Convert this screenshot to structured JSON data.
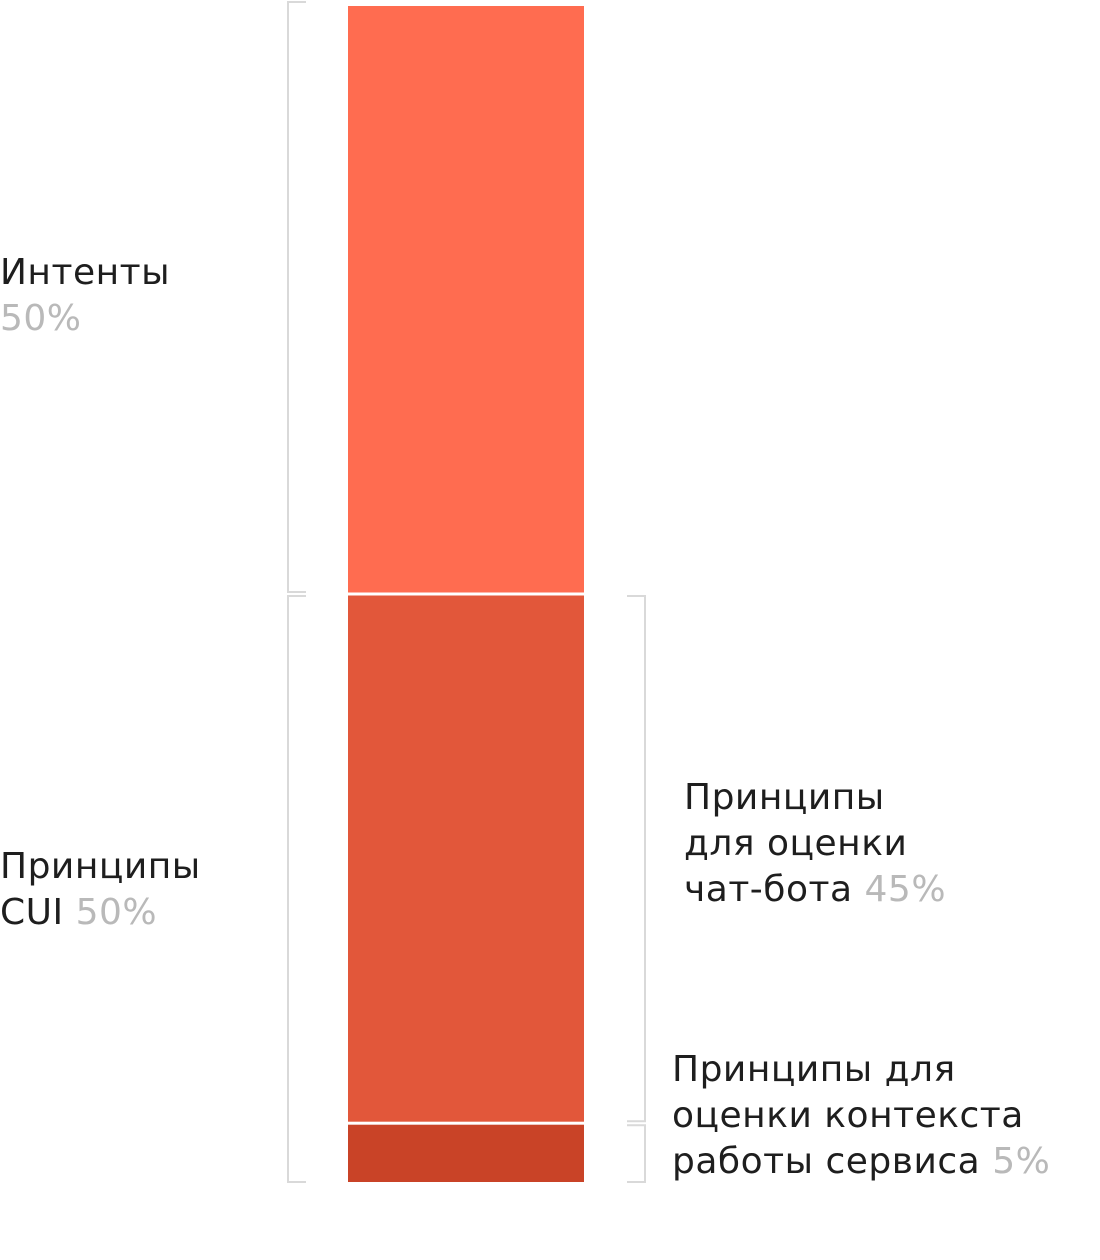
{
  "chart_data": {
    "type": "stacked-bar",
    "total": 100,
    "unit": "%",
    "segments": [
      {
        "name": "Интенты",
        "value": 50,
        "color": "#ff6c50"
      },
      {
        "name": "Принципы для оценки чат-бота",
        "value": 45,
        "color": "#e2573a"
      },
      {
        "name": "Принципы для оценки контекста работы сервиса",
        "value": 5,
        "color": "#c94327"
      }
    ],
    "groups": [
      {
        "name": "Интенты",
        "value": 50,
        "segments": [
          0
        ]
      },
      {
        "name": "Принципы CUI",
        "value": 50,
        "segments": [
          1,
          2
        ]
      }
    ]
  },
  "labels": {
    "intents": {
      "line1": "Интенты",
      "pct": "50%"
    },
    "cui": {
      "line1": "Принципы",
      "line2": "CUI",
      "pct": "50%"
    },
    "chatbot": {
      "line1": "Принципы",
      "line2": "для оценки",
      "line3": "чат-бота",
      "pct": "45%"
    },
    "context": {
      "line1": "Принципы для",
      "line2": "оценки контекста",
      "line3": "работы сервиса",
      "pct": "5%"
    }
  },
  "colors": {
    "bracket": "#d9d9d9",
    "text": "#1e1e1e",
    "percent": "#b9b9b9"
  }
}
